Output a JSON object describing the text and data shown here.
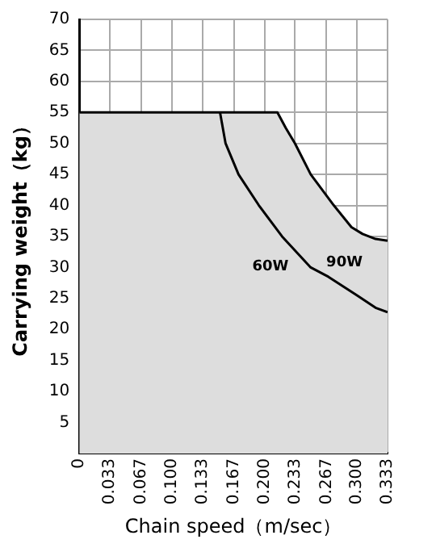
{
  "chart_data": {
    "type": "line",
    "xlabel": "Chain speed（m/sec）",
    "ylabel": "Carrying weight（kg）",
    "series": [
      {
        "name": "90W",
        "type": "area",
        "color": "#dddddd",
        "x": [
          0,
          0.214,
          0.223,
          0.233,
          0.25,
          0.275,
          0.294,
          0.306,
          0.32,
          0.333
        ],
        "values": [
          55,
          55,
          52.5,
          50,
          45,
          40,
          36.5,
          35.4,
          34.6,
          34.3
        ]
      },
      {
        "name": "60W",
        "type": "line",
        "color": "#000000",
        "x": [
          0.152,
          0.155,
          0.158,
          0.172,
          0.194,
          0.219,
          0.25,
          0.269,
          0.3,
          0.32,
          0.333
        ],
        "values": [
          55,
          52.5,
          50,
          45,
          40,
          35,
          30,
          28.5,
          25.5,
          23.5,
          22.8
        ]
      }
    ],
    "xlim": [
      0,
      0.333
    ],
    "ylim": [
      0,
      70
    ],
    "xticks": [
      0,
      0.033,
      0.067,
      {
        "value": 0.1,
        "label": "0.100"
      },
      0.133,
      0.167,
      {
        "value": 0.2,
        "label": "0.200"
      },
      0.233,
      0.267,
      {
        "value": 0.3,
        "label": "0.300"
      },
      0.333
    ],
    "yticks": [
      5,
      10,
      15,
      20,
      25,
      30,
      35,
      40,
      45,
      50,
      55,
      60,
      65,
      70
    ],
    "grid": true,
    "legend": false,
    "marker": "none",
    "line_style": "solid"
  }
}
